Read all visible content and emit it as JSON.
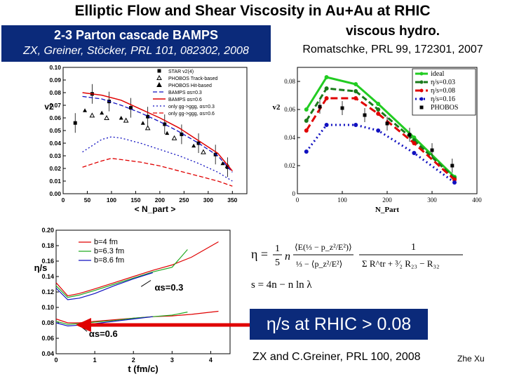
{
  "slide": {
    "title": "Elliptic Flow and Shear Viscosity in Au+Au at RHIC",
    "author": "Zhe Xu"
  },
  "bamps_header": {
    "title": "2-3 Parton cascade BAMPS",
    "reference": "ZX, Greiner, Stöcker, PRL 101, 082302, 2008"
  },
  "hydro_header": {
    "title": "viscous hydro.",
    "reference": "Romatschke, PRL 99, 172301, 2007"
  },
  "conclusion": {
    "text": "η/s at RHIC > 0.08",
    "reference": "ZX and C.Greiner, PRL 100, 2008"
  },
  "formula": {
    "eta_lhs": "η =",
    "frac_1": "1",
    "frac_5": "5",
    "n": "n",
    "numerator": "⟨E(⅓ − p_z²/E²)⟩",
    "denominator_left": "⅓ − ⟨p_z²/E²⟩",
    "one": "1",
    "denominator_right": "Σ R^tr + ³⁄₂ R₂₃ − R₃₂",
    "entropy": "s = 4n − n ln λ"
  },
  "icons": {
    "arrow": "left-arrow-icon"
  },
  "colors": {
    "navy": "#0b2a7a",
    "red": "#e00000",
    "green": "#22aa22",
    "blue": "#1010c0"
  },
  "chart_data": [
    {
      "id": "bamps-v2",
      "type": "line",
      "title": "",
      "xlabel": "< N_part >",
      "ylabel": "v2",
      "xlim": [
        0,
        380
      ],
      "ylim": [
        0.0,
        0.1
      ],
      "xticks": [
        "0",
        "50",
        "100",
        "150",
        "200",
        "250",
        "300",
        "350"
      ],
      "yticks": [
        "0.00",
        "0.01",
        "0.02",
        "0.03",
        "0.04",
        "0.05",
        "0.06",
        "0.07",
        "0.08",
        "0.09",
        "0.10"
      ],
      "legend": [
        "STAR v2(4)",
        "PHOBOS Track-based",
        "PHOBOS Hit-based",
        "BAMPS αs=0.3",
        "BAMPS αs=0.6",
        "only gg->ggg, αs=0.3",
        "only gg->ggg, αs=0.6"
      ],
      "series": [
        {
          "name": "STAR v2(4)",
          "x": [
            25,
            60,
            95,
            140,
            175,
            210,
            245,
            280,
            315,
            340
          ],
          "y": [
            0.056,
            0.079,
            0.073,
            0.068,
            0.061,
            0.055,
            0.047,
            0.04,
            0.031,
            0.021
          ],
          "color": "#000000"
        },
        {
          "name": "PHOBOS Track-based",
          "x": [
            60,
            90,
            130,
            175,
            230,
            290,
            340
          ],
          "y": [
            0.062,
            0.06,
            0.058,
            0.052,
            0.044,
            0.033,
            0.022
          ],
          "color": "#000000"
        },
        {
          "name": "PHOBOS Hit-based",
          "x": [
            45,
            80,
            120,
            165,
            215,
            270,
            330
          ],
          "y": [
            0.066,
            0.064,
            0.06,
            0.056,
            0.048,
            0.038,
            0.024
          ],
          "color": "#000000"
        },
        {
          "name": "BAMPS αs=0.3",
          "x": [
            40,
            80,
            120,
            160,
            200,
            240,
            280,
            320,
            350
          ],
          "y": [
            0.077,
            0.075,
            0.07,
            0.064,
            0.057,
            0.049,
            0.04,
            0.03,
            0.017
          ],
          "color": "#1010c0"
        },
        {
          "name": "BAMPS αs=0.6",
          "x": [
            40,
            80,
            120,
            160,
            200,
            240,
            280,
            320,
            350
          ],
          "y": [
            0.08,
            0.078,
            0.074,
            0.067,
            0.06,
            0.052,
            0.042,
            0.032,
            0.018
          ],
          "color": "#e00000"
        },
        {
          "name": "only gg->ggg, αs=0.3",
          "x": [
            40,
            80,
            100,
            120,
            160,
            200,
            240,
            280,
            320,
            350
          ],
          "y": [
            0.033,
            0.043,
            0.045,
            0.044,
            0.04,
            0.035,
            0.03,
            0.024,
            0.017,
            0.01
          ],
          "color": "#1010c0"
        },
        {
          "name": "only gg->ggg, αs=0.6",
          "x": [
            40,
            80,
            100,
            120,
            160,
            200,
            240,
            280,
            320,
            350
          ],
          "y": [
            0.021,
            0.026,
            0.028,
            0.027,
            0.025,
            0.022,
            0.018,
            0.014,
            0.01,
            0.006
          ],
          "color": "#e00000"
        }
      ]
    },
    {
      "id": "hydro-v2",
      "type": "line",
      "title": "",
      "xlabel": "N_Part",
      "ylabel": "v2",
      "xlim": [
        0,
        400
      ],
      "ylim": [
        0.0,
        0.09
      ],
      "xticks": [
        "0",
        "100",
        "200",
        "300",
        "400"
      ],
      "yticks": [
        "0",
        "0.02",
        "0.04",
        "0.06",
        "0.08"
      ],
      "legend": [
        "ideal",
        "η/s=0.03",
        "η/s=0.08",
        "η/s=0.16",
        "PHOBOS"
      ],
      "series": [
        {
          "name": "ideal",
          "x": [
            20,
            65,
            130,
            180,
            260,
            350
          ],
          "y": [
            0.06,
            0.083,
            0.078,
            0.064,
            0.04,
            0.012
          ],
          "color": "#22cc22"
        },
        {
          "name": "η/s=0.03",
          "x": [
            20,
            65,
            130,
            180,
            260,
            350
          ],
          "y": [
            0.052,
            0.075,
            0.073,
            0.06,
            0.038,
            0.011
          ],
          "color": "#1a7a1a"
        },
        {
          "name": "η/s=0.08",
          "x": [
            20,
            65,
            130,
            180,
            260,
            350
          ],
          "y": [
            0.045,
            0.068,
            0.068,
            0.057,
            0.036,
            0.01
          ],
          "color": "#e00000"
        },
        {
          "name": "η/s=0.16",
          "x": [
            20,
            65,
            130,
            180,
            260,
            350
          ],
          "y": [
            0.03,
            0.049,
            0.049,
            0.045,
            0.029,
            0.008
          ],
          "color": "#1010c0"
        },
        {
          "name": "PHOBOS",
          "x": [
            50,
            100,
            150,
            200,
            250,
            300,
            345
          ],
          "y": [
            0.062,
            0.061,
            0.056,
            0.05,
            0.042,
            0.031,
            0.02
          ],
          "color": "#000000"
        }
      ]
    },
    {
      "id": "eta-over-s",
      "type": "line",
      "title": "",
      "xlabel": "t (fm/c)",
      "ylabel": "η/s",
      "xlim": [
        0,
        4.5
      ],
      "ylim": [
        0.04,
        0.2
      ],
      "xticks": [
        "0",
        "1",
        "2",
        "3",
        "4"
      ],
      "yticks": [
        "0.04",
        "0.06",
        "0.08",
        "0.10",
        "0.12",
        "0.14",
        "0.16",
        "0.18",
        "0.20"
      ],
      "legend": [
        "b=4 fm",
        "b=6.3 fm",
        "b=8.6 fm"
      ],
      "annotations": [
        "αs=0.3",
        "αs=0.6"
      ],
      "series": [
        {
          "name": "b=4 fm αs=0.3",
          "x": [
            0.0,
            0.3,
            0.6,
            1.0,
            1.5,
            2.0,
            2.5,
            3.0,
            3.5,
            4.2
          ],
          "y": [
            0.132,
            0.115,
            0.118,
            0.124,
            0.132,
            0.14,
            0.148,
            0.155,
            0.165,
            0.185
          ],
          "color": "#e00000"
        },
        {
          "name": "b=6.3 fm αs=0.3",
          "x": [
            0.0,
            0.3,
            0.6,
            1.0,
            1.5,
            2.0,
            2.5,
            3.0,
            3.4
          ],
          "y": [
            0.128,
            0.113,
            0.116,
            0.122,
            0.13,
            0.138,
            0.146,
            0.152,
            0.175
          ],
          "color": "#22aa22"
        },
        {
          "name": "b=8.6 fm αs=0.3",
          "x": [
            0.0,
            0.3,
            0.6,
            1.0,
            1.5,
            2.0,
            2.5
          ],
          "y": [
            0.125,
            0.11,
            0.112,
            0.118,
            0.128,
            0.137,
            0.145
          ],
          "color": "#1010c0"
        },
        {
          "name": "b=4 fm αs=0.6",
          "x": [
            0.0,
            0.3,
            0.6,
            1.0,
            1.5,
            2.0,
            2.5,
            3.0,
            3.5,
            4.2
          ],
          "y": [
            0.085,
            0.08,
            0.08,
            0.082,
            0.084,
            0.086,
            0.088,
            0.089,
            0.091,
            0.095
          ],
          "color": "#e00000"
        },
        {
          "name": "b=6.3 fm αs=0.6",
          "x": [
            0.0,
            0.3,
            0.6,
            1.0,
            1.5,
            2.0,
            2.5,
            3.0,
            3.4
          ],
          "y": [
            0.082,
            0.078,
            0.079,
            0.081,
            0.083,
            0.086,
            0.088,
            0.09,
            0.094
          ],
          "color": "#22aa22"
        },
        {
          "name": "b=8.6 fm αs=0.6",
          "x": [
            0.0,
            0.3,
            0.6,
            1.0,
            1.5,
            2.0,
            2.5
          ],
          "y": [
            0.08,
            0.076,
            0.077,
            0.079,
            0.082,
            0.085,
            0.088
          ],
          "color": "#1010c0"
        }
      ]
    }
  ]
}
